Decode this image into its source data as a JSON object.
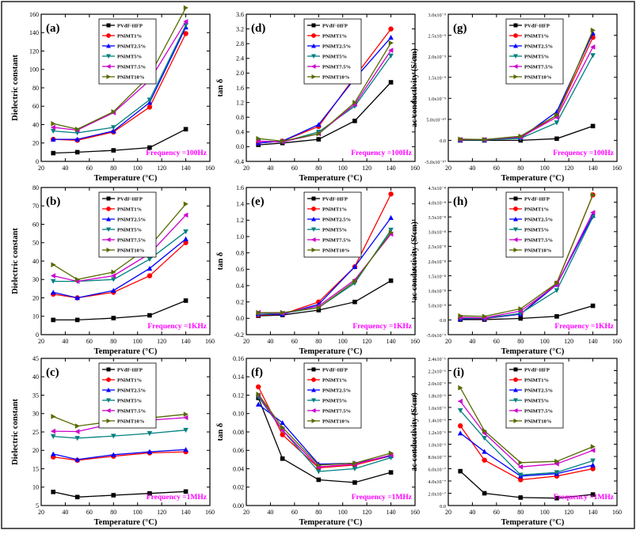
{
  "temperature_axis_label": "Temperature (°C)",
  "series_names": [
    "PVdF-HFP",
    "PNiMT1%",
    "PNiMT2.5%",
    "PNiMT5%",
    "PNiMT7.5%",
    "PNiMT10%"
  ],
  "series_style": {
    "colors": [
      "#000000",
      "#ff0000",
      "#0000ff",
      "#008080",
      "#cc00cc",
      "#556b00"
    ],
    "markers": [
      "square",
      "circle",
      "triangle-up",
      "triangle-down",
      "triangle-left",
      "triangle-right"
    ]
  },
  "chart_data": [
    {
      "id": "a",
      "type": "line",
      "panel_label": "(a)",
      "title": "",
      "frequency_label": "Frequency =100Hz",
      "ylabel": "Dielectric constant",
      "xlabel": "Temperature (°C)",
      "xlim": [
        20,
        160
      ],
      "xticks": [
        20,
        40,
        60,
        80,
        100,
        120,
        140,
        160
      ],
      "ylim": [
        0,
        160
      ],
      "yticks": [
        0,
        20,
        40,
        60,
        80,
        100,
        120,
        140,
        160
      ],
      "ytick_labels": [
        "0",
        "20",
        "40",
        "60",
        "80",
        "100",
        "120",
        "140",
        "160"
      ],
      "x": [
        30,
        50,
        80,
        110,
        140
      ],
      "series": [
        {
          "name": "PVdF-HFP",
          "values": [
            9,
            10,
            12,
            15,
            35
          ]
        },
        {
          "name": "PNiMT1%",
          "values": [
            24,
            23,
            32,
            59,
            139
          ]
        },
        {
          "name": "PNiMT2.5%",
          "values": [
            24,
            24,
            33,
            64,
            146
          ]
        },
        {
          "name": "PNiMT5%",
          "values": [
            33,
            31,
            37,
            67,
            148
          ]
        },
        {
          "name": "PNiMT7.5%",
          "values": [
            37,
            34,
            53,
            88,
            152
          ]
        },
        {
          "name": "PNiMT10%",
          "values": [
            41,
            35,
            54,
            93,
            167
          ]
        }
      ]
    },
    {
      "id": "d",
      "type": "line",
      "panel_label": "(d)",
      "title": "",
      "frequency_label": "Frequency =100Hz",
      "ylabel": "tan δ",
      "xlabel": "Temperature (°C)",
      "xlim": [
        20,
        160
      ],
      "xticks": [
        20,
        40,
        60,
        80,
        100,
        120,
        140,
        160
      ],
      "ylim": [
        -0.4,
        3.6
      ],
      "yticks": [
        -0.4,
        0,
        0.4,
        0.8,
        1.2,
        1.6,
        2.0,
        2.4,
        2.8,
        3.2,
        3.6
      ],
      "ytick_labels": [
        "-0.4",
        "0.0",
        "0.4",
        "0.8",
        "1.2",
        "1.6",
        "2.0",
        "2.4",
        "2.8",
        "3.2",
        "3.6"
      ],
      "x": [
        30,
        50,
        80,
        110,
        140
      ],
      "series": [
        {
          "name": "PVdF-HFP",
          "values": [
            0.05,
            0.1,
            0.2,
            0.7,
            1.75
          ]
        },
        {
          "name": "PNiMT1%",
          "values": [
            0.1,
            0.15,
            0.55,
            1.9,
            3.2
          ]
        },
        {
          "name": "PNiMT2.5%",
          "values": [
            0.1,
            0.15,
            0.6,
            1.85,
            2.97
          ]
        },
        {
          "name": "PNiMT5%",
          "values": [
            0.15,
            0.13,
            0.4,
            1.1,
            2.47
          ]
        },
        {
          "name": "PNiMT7.5%",
          "values": [
            0.15,
            0.13,
            0.35,
            1.15,
            2.62
          ]
        },
        {
          "name": "PNiMT10%",
          "values": [
            0.22,
            0.15,
            0.35,
            1.2,
            2.82
          ]
        }
      ]
    },
    {
      "id": "g",
      "type": "line",
      "panel_label": "(g)",
      "title": "",
      "frequency_label": "Frequency =100Hz",
      "ylabel": "ac conductivity (S/cm)",
      "xlabel": "Temperature (°C)",
      "xlim": [
        20,
        160
      ],
      "xticks": [
        20,
        40,
        60,
        80,
        100,
        120,
        140,
        160
      ],
      "ylim": [
        -5e-10,
        3e-09
      ],
      "yticks": [
        -5e-10,
        0,
        5e-10,
        1e-09,
        1.5e-09,
        2e-09,
        2.5e-09,
        3e-09
      ],
      "ytick_labels": [
        "-5.0x10⁻¹⁰",
        "0.0",
        "5.0x10⁻¹⁰",
        "1.0x10⁻⁹",
        "1.5x10⁻⁹",
        "2.0x10⁻⁹",
        "2.5x10⁻⁹",
        "3.0x10⁻⁹"
      ],
      "x": [
        30,
        50,
        80,
        110,
        140
      ],
      "series": [
        {
          "name": "PVdF-HFP",
          "values": [
            0,
            0,
            0,
            4e-11,
            3.4e-10
          ]
        },
        {
          "name": "PNiMT1%",
          "values": [
            1e-11,
            1e-11,
            6e-11,
            6e-10,
            2.45e-09
          ]
        },
        {
          "name": "PNiMT2.5%",
          "values": [
            1e-11,
            1e-11,
            6e-11,
            6.8e-10,
            2.55e-09
          ]
        },
        {
          "name": "PNiMT5%",
          "values": [
            1e-11,
            1e-11,
            5e-11,
            4.2e-10,
            2.02e-09
          ]
        },
        {
          "name": "PNiMT7.5%",
          "values": [
            2e-11,
            2e-11,
            8e-11,
            5.5e-10,
            2.22e-09
          ]
        },
        {
          "name": "PNiMT10%",
          "values": [
            3e-11,
            2e-11,
            1e-10,
            6e-10,
            2.62e-09
          ]
        }
      ]
    },
    {
      "id": "b",
      "type": "line",
      "panel_label": "(b)",
      "title": "",
      "frequency_label": "Frequency =1KHz",
      "ylabel": "Dielectric constant",
      "xlabel": "Temperature (°C)",
      "xlim": [
        20,
        160
      ],
      "xticks": [
        20,
        40,
        60,
        80,
        100,
        120,
        140,
        160
      ],
      "ylim": [
        0,
        80
      ],
      "yticks": [
        0,
        10,
        20,
        30,
        40,
        50,
        60,
        70,
        80
      ],
      "ytick_labels": [
        "0",
        "10",
        "20",
        "30",
        "40",
        "50",
        "60",
        "70",
        "80"
      ],
      "x": [
        30,
        50,
        80,
        110,
        140
      ],
      "series": [
        {
          "name": "PVdF-HFP",
          "values": [
            8,
            8,
            9,
            10.5,
            18.5
          ]
        },
        {
          "name": "PNiMT1%",
          "values": [
            22,
            20,
            23,
            32,
            50
          ]
        },
        {
          "name": "PNiMT2.5%",
          "values": [
            23,
            20,
            24,
            36,
            52
          ]
        },
        {
          "name": "PNiMT5%",
          "values": [
            29,
            29,
            30,
            41,
            56
          ]
        },
        {
          "name": "PNiMT7.5%",
          "values": [
            32,
            29,
            32,
            44,
            65
          ]
        },
        {
          "name": "PNiMT10%",
          "values": [
            38,
            30,
            34,
            48,
            71
          ]
        }
      ]
    },
    {
      "id": "e",
      "type": "line",
      "panel_label": "(e)",
      "title": "",
      "frequency_label": "Frequency =1KHz",
      "ylabel": "tan δ",
      "xlabel": "Temperature (°C)",
      "xlim": [
        20,
        160
      ],
      "xticks": [
        20,
        40,
        60,
        80,
        100,
        120,
        140,
        160
      ],
      "ylim": [
        -0.2,
        1.6
      ],
      "yticks": [
        -0.2,
        0,
        0.2,
        0.4,
        0.6,
        0.8,
        1.0,
        1.2,
        1.4,
        1.6
      ],
      "ytick_labels": [
        "-0.2",
        "0.0",
        "0.2",
        "0.4",
        "0.6",
        "0.8",
        "1.0",
        "1.2",
        "1.4",
        "1.6"
      ],
      "x": [
        30,
        50,
        80,
        110,
        140
      ],
      "series": [
        {
          "name": "PVdF-HFP",
          "values": [
            0.03,
            0.04,
            0.1,
            0.2,
            0.46
          ]
        },
        {
          "name": "PNiMT1%",
          "values": [
            0.04,
            0.05,
            0.2,
            0.63,
            1.52
          ]
        },
        {
          "name": "PNiMT2.5%",
          "values": [
            0.05,
            0.05,
            0.17,
            0.63,
            1.23
          ]
        },
        {
          "name": "PNiMT5%",
          "values": [
            0.05,
            0.06,
            0.13,
            0.43,
            1.08
          ]
        },
        {
          "name": "PNiMT7.5%",
          "values": [
            0.07,
            0.06,
            0.15,
            0.47,
            1.03
          ]
        },
        {
          "name": "PNiMT10%",
          "values": [
            0.07,
            0.07,
            0.13,
            0.45,
            1.05
          ]
        }
      ]
    },
    {
      "id": "h",
      "type": "line",
      "panel_label": "(h)",
      "title": "",
      "frequency_label": "Frequency =1KHz",
      "ylabel": "ac conductivity (S/cm)",
      "xlabel": "Temperature (°C)",
      "xlim": [
        20,
        160
      ],
      "xticks": [
        20,
        40,
        60,
        80,
        100,
        120,
        140,
        160
      ],
      "ylim": [
        -5e-09,
        4.5e-08
      ],
      "yticks": [
        -5e-09,
        0,
        5e-09,
        1e-08,
        1.5e-08,
        2e-08,
        2.5e-08,
        3e-08,
        3.5e-08,
        4e-08,
        4.5e-08
      ],
      "ytick_labels": [
        "-5.0x10⁻⁹",
        "0.0",
        "5.0x10⁻⁹",
        "1.0x10⁻⁸",
        "1.5x10⁻⁸",
        "2.0x10⁻⁸",
        "2.5x10⁻⁸",
        "3.0x10⁻⁸",
        "3.5x10⁻⁸",
        "4.0x10⁻⁸",
        "4.5x10⁻⁸"
      ],
      "x": [
        30,
        50,
        80,
        110,
        140
      ],
      "series": [
        {
          "name": "PVdF-HFP",
          "values": [
            1e-10,
            1e-10,
            5e-10,
            1.2e-09,
            4.8e-09
          ]
        },
        {
          "name": "PNiMT1%",
          "values": [
            4e-10,
            4e-10,
            2e-09,
            1.25e-08,
            4.25e-08
          ]
        },
        {
          "name": "PNiMT2.5%",
          "values": [
            4e-10,
            5e-10,
            2e-09,
            1.2e-08,
            3.55e-08
          ]
        },
        {
          "name": "PNiMT5%",
          "values": [
            6e-10,
            6e-10,
            2.2e-09,
            1e-08,
            3.5e-08
          ]
        },
        {
          "name": "PNiMT7.5%",
          "values": [
            9e-10,
            7e-10,
            3e-09,
            1.2e-08,
            3.65e-08
          ]
        },
        {
          "name": "PNiMT10%",
          "values": [
            1.4e-09,
            1.2e-09,
            3.8e-09,
            1.25e-08,
            4.25e-08
          ]
        }
      ]
    },
    {
      "id": "c",
      "type": "line",
      "panel_label": "(c)",
      "title": "",
      "frequency_label": "Frequency =1MHz",
      "ylabel": "Dielectric constant",
      "xlabel": "Temperature (°C)",
      "xlim": [
        20,
        160
      ],
      "xticks": [
        20,
        40,
        60,
        80,
        100,
        120,
        140,
        160
      ],
      "ylim": [
        5,
        45
      ],
      "yticks": [
        5,
        10,
        15,
        20,
        25,
        30,
        35,
        40,
        45
      ],
      "ytick_labels": [
        "5",
        "10",
        "15",
        "20",
        "25",
        "30",
        "35",
        "40",
        "45"
      ],
      "x": [
        30,
        50,
        80,
        110,
        140
      ],
      "series": [
        {
          "name": "PVdF-HFP",
          "values": [
            8.7,
            7.3,
            7.8,
            8.3,
            8.8
          ]
        },
        {
          "name": "PNiMT1%",
          "values": [
            18.2,
            17.3,
            18.4,
            19.3,
            19.6
          ]
        },
        {
          "name": "PNiMT2.5%",
          "values": [
            19,
            17.5,
            18.8,
            19.6,
            20.2
          ]
        },
        {
          "name": "PNiMT5%",
          "values": [
            23.8,
            23.3,
            23.9,
            24.6,
            25.5
          ]
        },
        {
          "name": "PNiMT7.5%",
          "values": [
            25.2,
            25.1,
            27.3,
            28.2,
            28.9
          ]
        },
        {
          "name": "PNiMT10%",
          "values": [
            29.2,
            26.6,
            27.9,
            28.8,
            29.8
          ]
        }
      ]
    },
    {
      "id": "f",
      "type": "line",
      "panel_label": "(f)",
      "title": "",
      "frequency_label": "Frequency =1MHz",
      "ylabel": "tan δ",
      "xlabel": "Temperature (°C)",
      "xlim": [
        20,
        160
      ],
      "xticks": [
        20,
        40,
        60,
        80,
        100,
        120,
        140,
        160
      ],
      "ylim": [
        0,
        0.16
      ],
      "yticks": [
        0,
        0.02,
        0.04,
        0.06,
        0.08,
        0.1,
        0.12,
        0.14,
        0.16
      ],
      "ytick_labels": [
        "0.00",
        "0.02",
        "0.04",
        "0.06",
        "0.08",
        "0.10",
        "0.12",
        "0.14",
        "0.16"
      ],
      "x": [
        30,
        50,
        80,
        110,
        140
      ],
      "series": [
        {
          "name": "PVdF-HFP",
          "values": [
            0.117,
            0.051,
            0.028,
            0.025,
            0.036
          ]
        },
        {
          "name": "PNiMT1%",
          "values": [
            0.129,
            0.077,
            0.041,
            0.044,
            0.054
          ]
        },
        {
          "name": "PNiMT2.5%",
          "values": [
            0.11,
            0.09,
            0.045,
            0.046,
            0.054
          ]
        },
        {
          "name": "PNiMT5%",
          "values": [
            0.118,
            0.082,
            0.037,
            0.04,
            0.052
          ]
        },
        {
          "name": "PNiMT7.5%",
          "values": [
            0.12,
            0.082,
            0.042,
            0.045,
            0.055
          ]
        },
        {
          "name": "PNiMT10%",
          "values": [
            0.121,
            0.085,
            0.044,
            0.046,
            0.057
          ]
        }
      ]
    },
    {
      "id": "i",
      "type": "line",
      "panel_label": "(i)",
      "title": "",
      "frequency_label": "Frequency =1MHz",
      "ylabel": "ac conductivity (S/cm)",
      "xlabel": "Temperature (°C)",
      "xlim": [
        20,
        160
      ],
      "xticks": [
        20,
        40,
        60,
        80,
        100,
        120,
        140,
        160
      ],
      "ylim": [
        0,
        2.4e-06
      ],
      "yticks": [
        0,
        2e-07,
        4e-07,
        6e-07,
        8e-07,
        1e-06,
        1.2e-06,
        1.4e-06,
        1.6e-06,
        1.8e-06,
        2e-06,
        2.2e-06,
        2.4e-06
      ],
      "ytick_labels": [
        "0.0",
        "2.0x10⁻⁷",
        "4.0x10⁻⁷",
        "6.0x10⁻⁷",
        "8.0x10⁻⁷",
        "1.0x10⁻⁶",
        "1.2x10⁻⁶",
        "1.4x10⁻⁶",
        "1.6x10⁻⁶",
        "1.8x10⁻⁶",
        "2.0x10⁻⁶",
        "2.2x10⁻⁶",
        "2.4x10⁻⁶"
      ],
      "x": [
        30,
        50,
        80,
        110,
        140
      ],
      "series": [
        {
          "name": "PVdF-HFP",
          "values": [
            5.6e-07,
            2e-07,
            1.3e-07,
            1.2e-07,
            1.8e-07
          ]
        },
        {
          "name": "PNiMT1%",
          "values": [
            1.3e-06,
            7.4e-07,
            4.2e-07,
            4.8e-07,
            6e-07
          ]
        },
        {
          "name": "PNiMT2.5%",
          "values": [
            1.18e-06,
            8.8e-07,
            4.8e-07,
            5.2e-07,
            6.6e-07
          ]
        },
        {
          "name": "PNiMT5%",
          "values": [
            1.55e-06,
            1.1e-06,
            5e-07,
            5.4e-07,
            7.3e-07
          ]
        },
        {
          "name": "PNiMT7.5%",
          "values": [
            1.7e-06,
            1.18e-06,
            6.3e-07,
            6.8e-07,
            9e-07
          ]
        },
        {
          "name": "PNiMT10%",
          "values": [
            1.92e-06,
            1.22e-06,
            7e-07,
            7.2e-07,
            9.6e-07
          ]
        }
      ]
    }
  ]
}
